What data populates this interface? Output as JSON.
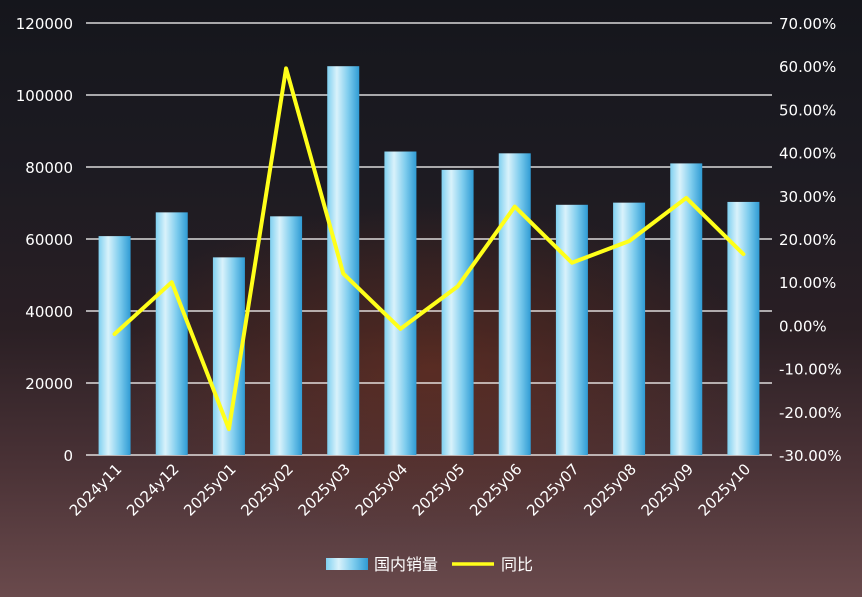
{
  "chart_data": {
    "type": "bar",
    "categories": [
      "2024y11",
      "2024y12",
      "2025y01",
      "2025y02",
      "2025y03",
      "2025y04",
      "2025y05",
      "2025y06",
      "2025y07",
      "2025y08",
      "2025y09",
      "2025y10"
    ],
    "series": [
      {
        "name": "国内销量",
        "type": "bar",
        "axis": "left",
        "values": [
          60800,
          67400,
          54900,
          66300,
          108000,
          84300,
          79200,
          83800,
          69500,
          70100,
          81000,
          70300
        ]
      },
      {
        "name": "同比",
        "type": "line",
        "axis": "right",
        "values": [
          -2.0,
          10.0,
          -24.0,
          59.5,
          12.0,
          -0.8,
          9.0,
          27.5,
          14.5,
          19.5,
          29.5,
          16.5
        ]
      }
    ],
    "y_left": {
      "ticks": [
        "0",
        "20000",
        "40000",
        "60000",
        "80000",
        "100000",
        "120000"
      ],
      "min": 0,
      "max": 120000
    },
    "y_right": {
      "ticks": [
        "-30.00%",
        "-20.00%",
        "-10.00%",
        "0.00%",
        "10.00%",
        "20.00%",
        "30.00%",
        "40.00%",
        "50.00%",
        "60.00%",
        "70.00%"
      ],
      "min": -30,
      "max": 70
    },
    "grid": true,
    "legend_position": "bottom",
    "colors": {
      "bar_light": "#dff3fb",
      "bar_dark": "#3aa8dc",
      "line": "#ffff1a",
      "grid": "#ffffff",
      "text": "#ffffff"
    }
  }
}
